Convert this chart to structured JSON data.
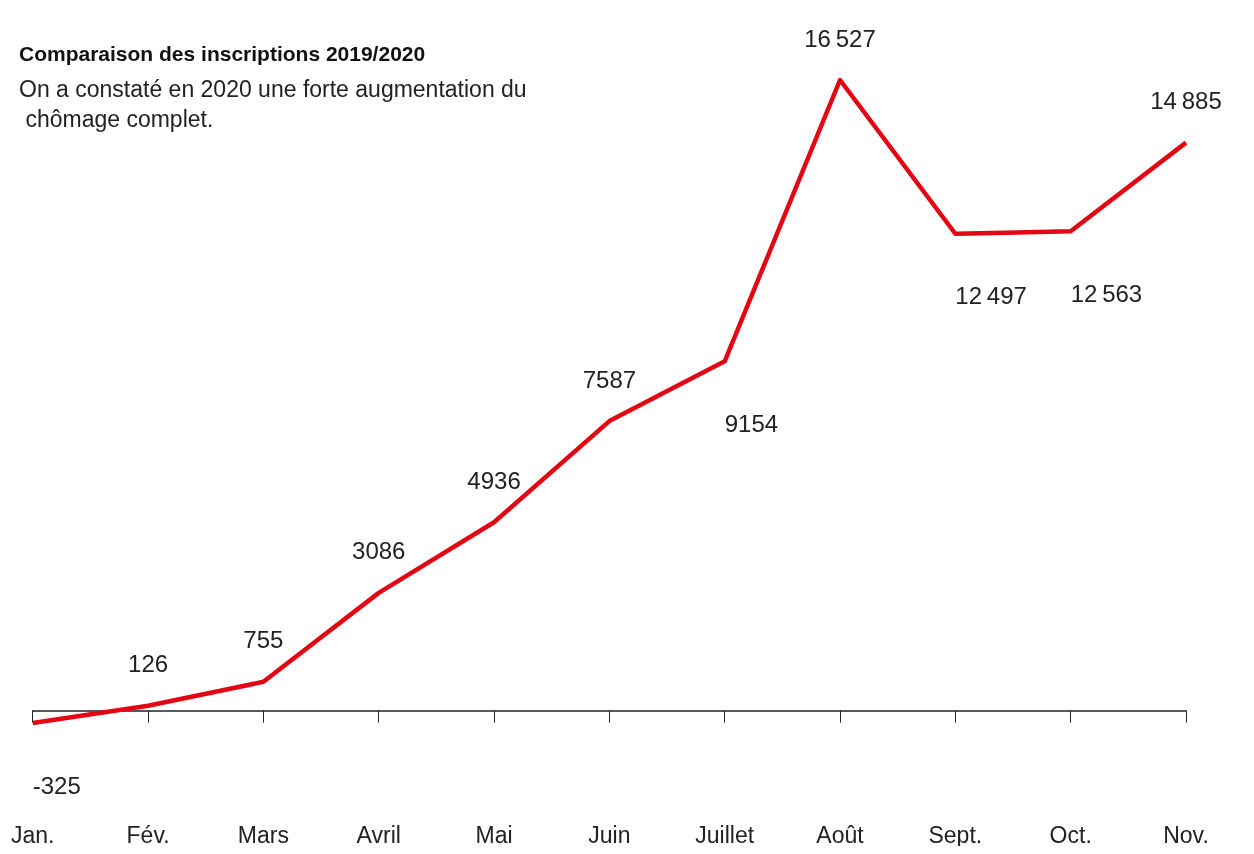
{
  "chart_data": {
    "type": "line",
    "title": "Comparaison des inscriptions 2019/2020",
    "subtitle": "On a constaté en 2020 une forte augmentation du chômage complet.",
    "categories": [
      "Jan.",
      "Fév.",
      "Mars",
      "Avril",
      "Mai",
      "Juin",
      "Juillet",
      "Août",
      "Sept.",
      "Oct.",
      "Nov."
    ],
    "series": [
      {
        "color": "#e30613",
        "values": [
          -325,
          126,
          755,
          3086,
          4936,
          7587,
          9154,
          16527,
          12497,
          12563,
          14885
        ]
      }
    ],
    "data_labels": true,
    "marker": "none",
    "grid": false
  }
}
